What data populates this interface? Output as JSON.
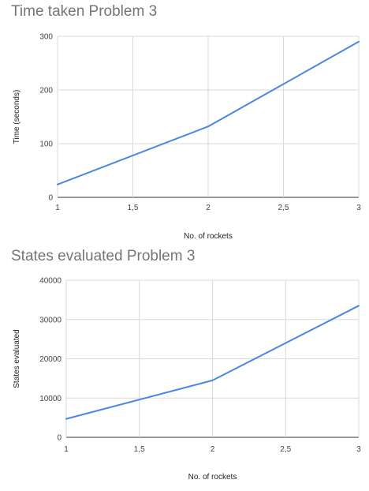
{
  "chart_data": [
    {
      "type": "line",
      "title": "Time taken Problem 3",
      "xlabel": "No. of rockets",
      "ylabel": "Time (seconds)",
      "xlim": [
        1,
        3
      ],
      "ylim": [
        0,
        300
      ],
      "x_ticks": [
        1,
        1.5,
        2,
        2.5,
        3
      ],
      "x_tick_labels": [
        "1",
        "1,5",
        "2",
        "2,5",
        "3"
      ],
      "y_ticks": [
        0,
        100,
        200,
        300
      ],
      "y_tick_labels": [
        "0",
        "100",
        "200",
        "300"
      ],
      "grid": true,
      "line_color": "#4a86e8",
      "x": [
        1,
        2,
        3
      ],
      "y": [
        24,
        132,
        290
      ]
    },
    {
      "type": "line",
      "title": "States evaluated Problem 3",
      "xlabel": "No. of rockets",
      "ylabel": "States evaluated",
      "xlim": [
        1,
        3
      ],
      "ylim": [
        0,
        40000
      ],
      "x_ticks": [
        1,
        1.5,
        2,
        2.5,
        3
      ],
      "x_tick_labels": [
        "1",
        "1,5",
        "2",
        "2,5",
        "3"
      ],
      "y_ticks": [
        0,
        10000,
        20000,
        30000,
        40000
      ],
      "y_tick_labels": [
        "0",
        "10000",
        "20000",
        "30000",
        "40000"
      ],
      "grid": true,
      "line_color": "#4a86e8",
      "x": [
        1,
        2,
        3
      ],
      "y": [
        4700,
        14500,
        33500
      ]
    }
  ]
}
